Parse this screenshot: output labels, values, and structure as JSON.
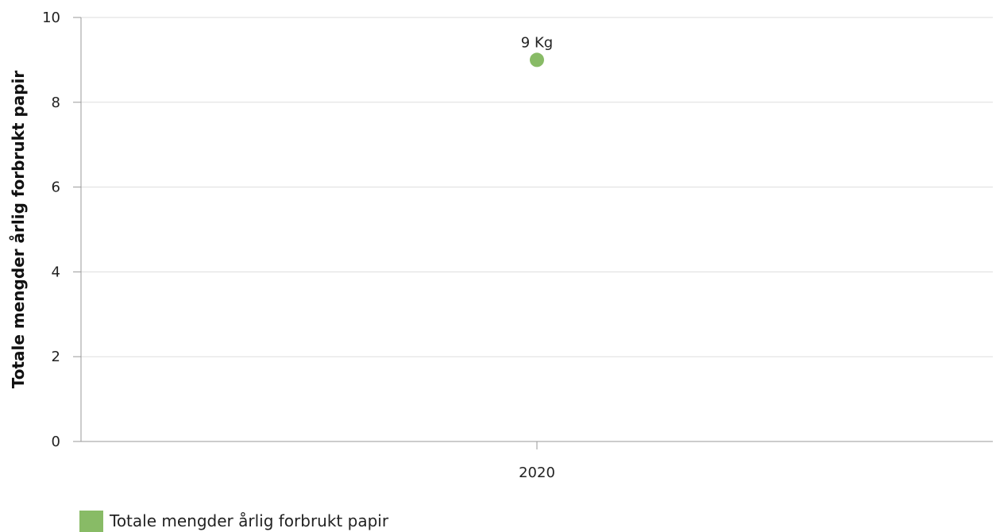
{
  "chart_data": {
    "type": "scatter",
    "title": "",
    "xlabel": "",
    "ylabel": "Totale mengder årlig forbrukt papir",
    "categories": [
      "2020"
    ],
    "series": [
      {
        "name": "Totale mengder årlig forbrukt papir",
        "values": [
          9
        ],
        "data_labels": [
          "9 Kg"
        ]
      }
    ],
    "ylim": [
      0,
      10
    ],
    "yticks": [
      "0",
      "2",
      "4",
      "6",
      "8",
      "10"
    ],
    "grid": true,
    "legend_position": "bottom-left",
    "colors": {
      "series": "#88bb66",
      "grid": "#dddddd",
      "axis": "#999999"
    }
  }
}
